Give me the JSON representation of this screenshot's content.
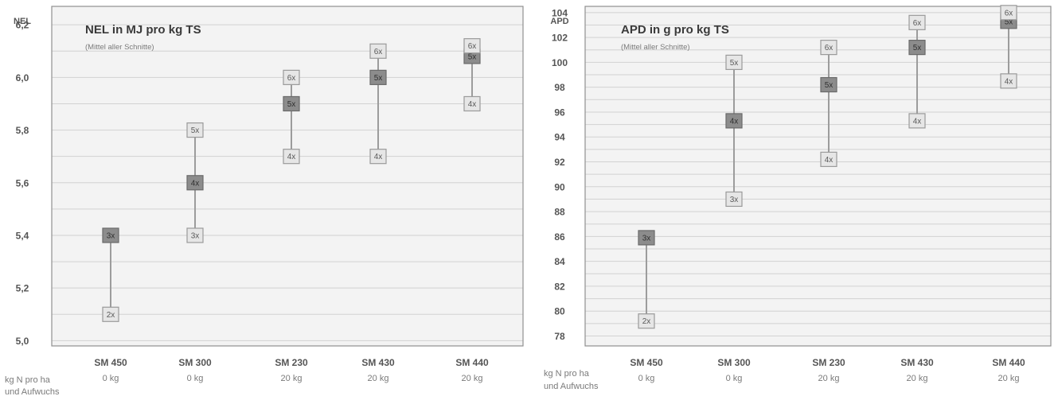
{
  "row_label_line1": "kg N pro ha",
  "row_label_line2": "und Aufwuchs",
  "colors": {
    "panel_bg": "#f3f3f3",
    "grid": "#d2d2d2",
    "border": "#8f8f8f",
    "stem": "#9c9c9c",
    "box_light": "#e6e6e6",
    "box_dark": "#8c8c8c"
  },
  "chart_data": [
    {
      "type": "range",
      "title": "NEL in MJ pro kg TS",
      "subtitle": "(Mittel aller Schnitte)",
      "ylabel": "NEL",
      "ylim": [
        4.98,
        6.27
      ],
      "grid_step": 0.1,
      "yticks": [
        "5,0",
        "5,2",
        "5,4",
        "5,6",
        "5,8",
        "6,0",
        "6,2"
      ],
      "ytick_values": [
        5.0,
        5.2,
        5.4,
        5.6,
        5.8,
        6.0,
        6.2
      ],
      "categories": [
        "SM 450",
        "SM 300",
        "SM 230",
        "SM 430",
        "SM 440"
      ],
      "doses": [
        "0 kg",
        "0 kg",
        "20 kg",
        "20 kg",
        "20 kg"
      ],
      "groups": [
        {
          "stem": [
            5.1,
            5.4
          ],
          "points": [
            {
              "label": "2x",
              "value": 5.1,
              "dark": false
            },
            {
              "label": "3x",
              "value": 5.4,
              "dark": true
            }
          ]
        },
        {
          "stem": [
            5.4,
            5.8
          ],
          "points": [
            {
              "label": "3x",
              "value": 5.4,
              "dark": false
            },
            {
              "label": "4x",
              "value": 5.6,
              "dark": true
            },
            {
              "label": "5x",
              "value": 5.8,
              "dark": false
            }
          ]
        },
        {
          "stem": [
            5.7,
            6.0
          ],
          "points": [
            {
              "label": "4x",
              "value": 5.7,
              "dark": false
            },
            {
              "label": "5x",
              "value": 5.9,
              "dark": true
            },
            {
              "label": "6x",
              "value": 6.0,
              "dark": false
            }
          ]
        },
        {
          "stem": [
            5.7,
            6.1
          ],
          "points": [
            {
              "label": "4x",
              "value": 5.7,
              "dark": false
            },
            {
              "label": "5x",
              "value": 6.0,
              "dark": true
            },
            {
              "label": "6x",
              "value": 6.1,
              "dark": false
            }
          ]
        },
        {
          "stem": [
            5.9,
            6.1
          ],
          "points": [
            {
              "label": "4x",
              "value": 5.9,
              "dark": false
            },
            {
              "label": "5x",
              "value": 6.08,
              "dark": true
            },
            {
              "label": "6x",
              "value": 6.12,
              "dark": false
            }
          ]
        }
      ]
    },
    {
      "type": "range",
      "title": "APD in g pro kg TS",
      "subtitle": "(Mittel aller Schnitte)",
      "ylabel": "APD",
      "ylim": [
        77.2,
        104.5
      ],
      "grid_step": 1,
      "yticks": [
        "78",
        "80",
        "82",
        "84",
        "86",
        "88",
        "90",
        "92",
        "94",
        "96",
        "98",
        "100",
        "102",
        "104"
      ],
      "ytick_values": [
        78,
        80,
        82,
        84,
        86,
        88,
        90,
        92,
        94,
        96,
        98,
        100,
        102,
        104
      ],
      "categories": [
        "SM 450",
        "SM 300",
        "SM 230",
        "SM 430",
        "SM 440"
      ],
      "doses": [
        "0 kg",
        "0 kg",
        "20 kg",
        "20 kg",
        "20 kg"
      ],
      "groups": [
        {
          "stem": [
            79.2,
            85.9
          ],
          "points": [
            {
              "label": "2x",
              "value": 79.2,
              "dark": false
            },
            {
              "label": "3x",
              "value": 85.9,
              "dark": true
            }
          ]
        },
        {
          "stem": [
            89.0,
            100.0
          ],
          "points": [
            {
              "label": "3x",
              "value": 89.0,
              "dark": false
            },
            {
              "label": "4x",
              "value": 95.3,
              "dark": true
            },
            {
              "label": "5x",
              "value": 100.0,
              "dark": false
            }
          ]
        },
        {
          "stem": [
            92.2,
            101.2
          ],
          "points": [
            {
              "label": "4x",
              "value": 92.2,
              "dark": false
            },
            {
              "label": "5x",
              "value": 98.2,
              "dark": true
            },
            {
              "label": "6x",
              "value": 101.2,
              "dark": false
            }
          ]
        },
        {
          "stem": [
            95.3,
            103.2
          ],
          "points": [
            {
              "label": "4x",
              "value": 95.3,
              "dark": false
            },
            {
              "label": "5x",
              "value": 101.2,
              "dark": true
            },
            {
              "label": "6x",
              "value": 103.2,
              "dark": false
            }
          ]
        },
        {
          "stem": [
            98.5,
            104.0
          ],
          "points": [
            {
              "label": "4x",
              "value": 98.5,
              "dark": false
            },
            {
              "label": "5x",
              "value": 103.3,
              "dark": true
            },
            {
              "label": "6x",
              "value": 104.0,
              "dark": false
            }
          ]
        }
      ]
    }
  ]
}
